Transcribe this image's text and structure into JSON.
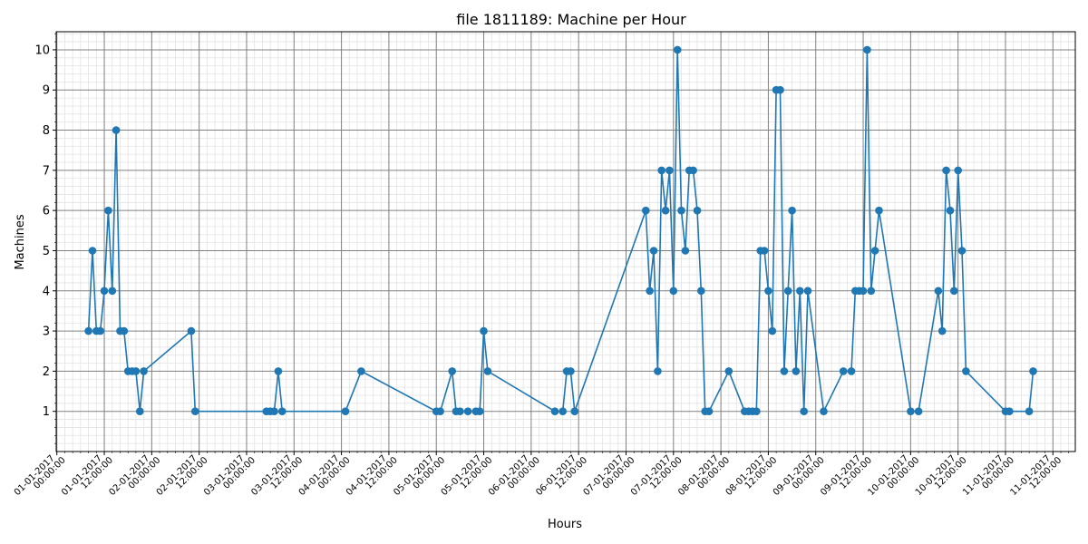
{
  "chart_data": {
    "type": "line",
    "title": "file 1811189: Machine per Hour",
    "xlabel": "Hours",
    "ylabel": "Machines",
    "ylim": [
      0,
      10.45
    ],
    "yticks": [
      1,
      2,
      3,
      4,
      5,
      6,
      7,
      8,
      9,
      10
    ],
    "xlim": [
      "31-12-2016 23:50:00",
      "11-01-2017 17:40:00"
    ],
    "xtick_labels": [
      "01-01-2017\n00:00:00",
      "01-01-2017\n12:00:00",
      "02-01-2017\n00:00:00",
      "02-01-2017\n12:00:00",
      "03-01-2017\n00:00:00",
      "03-01-2017\n12:00:00",
      "04-01-2017\n00:00:00",
      "04-01-2017\n12:00:00",
      "05-01-2017\n00:00:00",
      "05-01-2017\n12:00:00",
      "06-01-2017\n00:00:00",
      "06-01-2017\n12:00:00",
      "07-01-2017\n00:00:00",
      "07-01-2017\n12:00:00",
      "08-01-2017\n00:00:00",
      "08-01-2017\n12:00:00",
      "09-01-2017\n00:00:00",
      "09-01-2017\n12:00:00",
      "10-01-2017\n00:00:00",
      "10-01-2017\n12:00:00",
      "11-01-2017\n00:00:00",
      "11-01-2017\n12:00:00"
    ],
    "grid": true,
    "color": "#1f77b4",
    "x": [
      "01-01-2017 08:00",
      "01-01-2017 09:00",
      "01-01-2017 10:00",
      "01-01-2017 11:00",
      "01-01-2017 12:00",
      "01-01-2017 13:00",
      "01-01-2017 14:00",
      "01-01-2017 15:00",
      "01-01-2017 16:00",
      "01-01-2017 17:00",
      "01-01-2017 18:00",
      "01-01-2017 19:00",
      "01-01-2017 20:00",
      "01-01-2017 21:00",
      "01-01-2017 22:00",
      "02-01-2017 10:00",
      "02-01-2017 11:00",
      "03-01-2017 05:00",
      "03-01-2017 06:00",
      "03-01-2017 07:00",
      "03-01-2017 08:00",
      "03-01-2017 09:00",
      "04-01-2017 01:00",
      "04-01-2017 05:00",
      "05-01-2017 00:00",
      "05-01-2017 01:00",
      "05-01-2017 04:00",
      "05-01-2017 05:00",
      "05-01-2017 06:00",
      "05-01-2017 08:00",
      "05-01-2017 10:00",
      "05-01-2017 11:00",
      "05-01-2017 12:00",
      "05-01-2017 13:00",
      "06-01-2017 06:00",
      "06-01-2017 08:00",
      "06-01-2017 09:00",
      "06-01-2017 10:00",
      "06-01-2017 11:00",
      "07-01-2017 05:00",
      "07-01-2017 06:00",
      "07-01-2017 07:00",
      "07-01-2017 08:00",
      "07-01-2017 09:00",
      "07-01-2017 10:00",
      "07-01-2017 11:00",
      "07-01-2017 12:00",
      "07-01-2017 13:00",
      "07-01-2017 14:00",
      "07-01-2017 15:00",
      "07-01-2017 16:00",
      "07-01-2017 17:00",
      "07-01-2017 18:00",
      "07-01-2017 19:00",
      "07-01-2017 20:00",
      "07-01-2017 21:00",
      "08-01-2017 02:00",
      "08-01-2017 06:00",
      "08-01-2017 07:00",
      "08-01-2017 08:00",
      "08-01-2017 09:00",
      "08-01-2017 10:00",
      "08-01-2017 11:00",
      "08-01-2017 12:00",
      "08-01-2017 13:00",
      "08-01-2017 14:00",
      "08-01-2017 15:00",
      "08-01-2017 16:00",
      "08-01-2017 17:00",
      "08-01-2017 18:00",
      "08-01-2017 19:00",
      "08-01-2017 20:00",
      "08-01-2017 21:00",
      "08-01-2017 22:00",
      "09-01-2017 02:00",
      "09-01-2017 07:00",
      "09-01-2017 09:00",
      "09-01-2017 10:00",
      "09-01-2017 11:00",
      "09-01-2017 12:00",
      "09-01-2017 13:00",
      "09-01-2017 14:00",
      "09-01-2017 15:00",
      "09-01-2017 16:00",
      "10-01-2017 00:00",
      "10-01-2017 02:00",
      "10-01-2017 07:00",
      "10-01-2017 08:00",
      "10-01-2017 09:00",
      "10-01-2017 10:00",
      "10-01-2017 11:00",
      "10-01-2017 12:00",
      "10-01-2017 13:00",
      "10-01-2017 14:00",
      "11-01-2017 00:00",
      "11-01-2017 01:00",
      "11-01-2017 06:00",
      "11-01-2017 07:00"
    ],
    "y": [
      3,
      5,
      3,
      3,
      4,
      6,
      4,
      8,
      3,
      3,
      2,
      2,
      2,
      1,
      2,
      3,
      1,
      1,
      1,
      1,
      2,
      1,
      1,
      2,
      1,
      1,
      2,
      1,
      1,
      1,
      1,
      1,
      3,
      2,
      1,
      1,
      2,
      2,
      1,
      6,
      4,
      5,
      2,
      7,
      6,
      7,
      4,
      10,
      6,
      5,
      7,
      7,
      6,
      4,
      1,
      1,
      2,
      1,
      1,
      1,
      1,
      5,
      5,
      4,
      3,
      9,
      9,
      2,
      4,
      6,
      2,
      4,
      1,
      4,
      1,
      2,
      2,
      4,
      4,
      4,
      10,
      4,
      5,
      6,
      1,
      1,
      4,
      3,
      7,
      6,
      4,
      7,
      5,
      2,
      1,
      1,
      1,
      2
    ]
  }
}
